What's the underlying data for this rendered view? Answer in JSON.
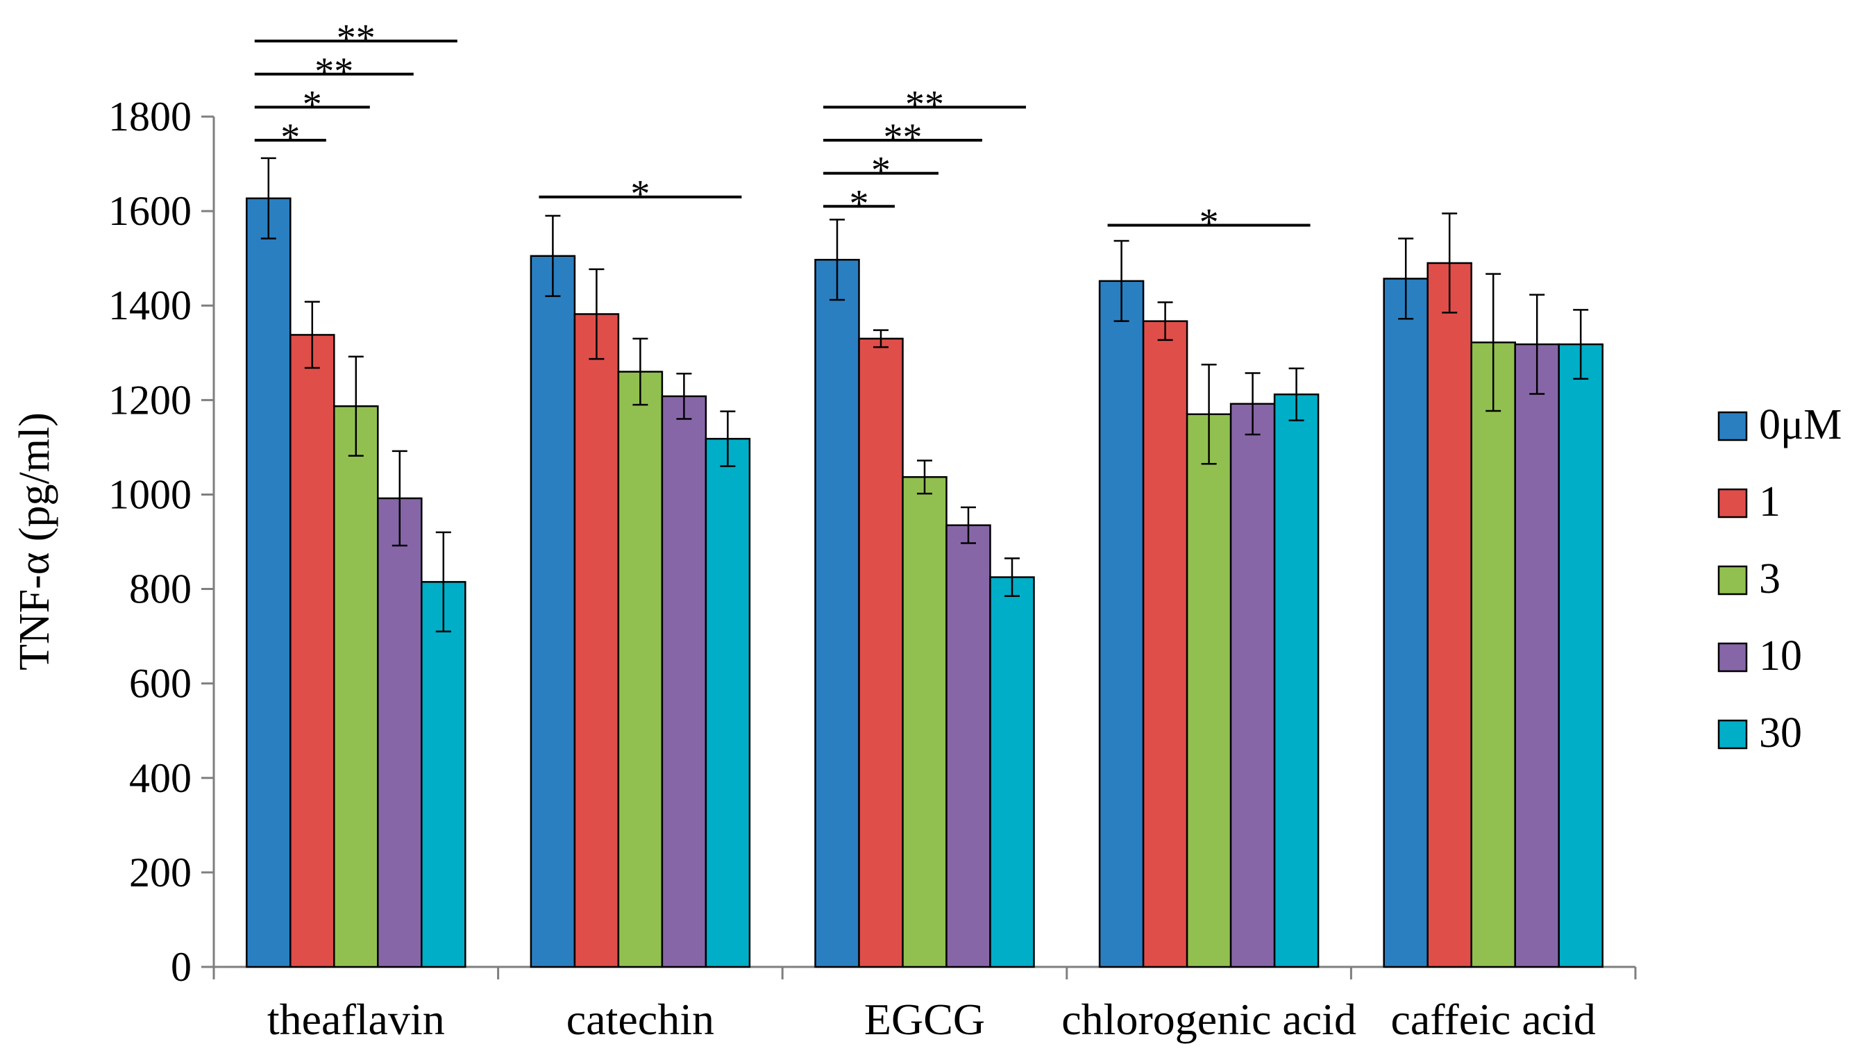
{
  "chart_data": {
    "type": "bar",
    "title": "",
    "xlabel": "",
    "ylabel": "TNF-α (pg/ml)",
    "ylim": [
      0,
      1800
    ],
    "yticks": [
      0,
      200,
      400,
      600,
      800,
      1000,
      1200,
      1400,
      1600,
      1800
    ],
    "ytick_labels": [
      "0",
      "200",
      "400",
      "600",
      "800",
      "1000",
      "1200",
      "1400",
      "1600",
      "1800"
    ],
    "grid": false,
    "legend_position": "right",
    "categories": [
      "theaflavin",
      "catechin",
      "EGCG",
      "chlorogenic acid",
      "caffeic acid"
    ],
    "series": [
      {
        "name": "0μM",
        "color": "#2a7fc1",
        "values": [
          1627,
          1505,
          1497,
          1452,
          1457
        ],
        "errors": [
          85,
          85,
          85,
          85,
          85
        ]
      },
      {
        "name": "1",
        "color": "#e04e4a",
        "values": [
          1338,
          1382,
          1330,
          1367,
          1490
        ],
        "errors": [
          70,
          95,
          18,
          40,
          105
        ]
      },
      {
        "name": "3",
        "color": "#92c050",
        "values": [
          1187,
          1260,
          1037,
          1170,
          1322
        ],
        "errors": [
          105,
          70,
          35,
          105,
          145
        ]
      },
      {
        "name": "10",
        "color": "#8766a8",
        "values": [
          992,
          1208,
          935,
          1192,
          1318
        ],
        "errors": [
          100,
          48,
          38,
          65,
          105
        ]
      },
      {
        "name": "30",
        "color": "#00aec8",
        "values": [
          815,
          1118,
          825,
          1212,
          1318
        ],
        "errors": [
          105,
          58,
          40,
          55,
          73
        ]
      }
    ],
    "annotations": [
      {
        "category": 0,
        "from_series": 0,
        "to_series": 1,
        "y": 1750,
        "label": "*"
      },
      {
        "category": 0,
        "from_series": 0,
        "to_series": 2,
        "y": 1820,
        "label": "*"
      },
      {
        "category": 0,
        "from_series": 0,
        "to_series": 3,
        "y": 1890,
        "label": "**"
      },
      {
        "category": 0,
        "from_series": 0,
        "to_series": 4,
        "y": 1960,
        "label": "**"
      },
      {
        "category": 1,
        "from_series": 0,
        "to_series": 4,
        "y": 1630,
        "label": "*"
      },
      {
        "category": 2,
        "from_series": 0,
        "to_series": 1,
        "y": 1610,
        "label": "*"
      },
      {
        "category": 2,
        "from_series": 0,
        "to_series": 2,
        "y": 1680,
        "label": "*"
      },
      {
        "category": 2,
        "from_series": 0,
        "to_series": 3,
        "y": 1750,
        "label": "**"
      },
      {
        "category": 2,
        "from_series": 0,
        "to_series": 4,
        "y": 1820,
        "label": "**"
      },
      {
        "category": 3,
        "from_series": 0,
        "to_series": 4,
        "y": 1570,
        "label": "*"
      }
    ]
  }
}
